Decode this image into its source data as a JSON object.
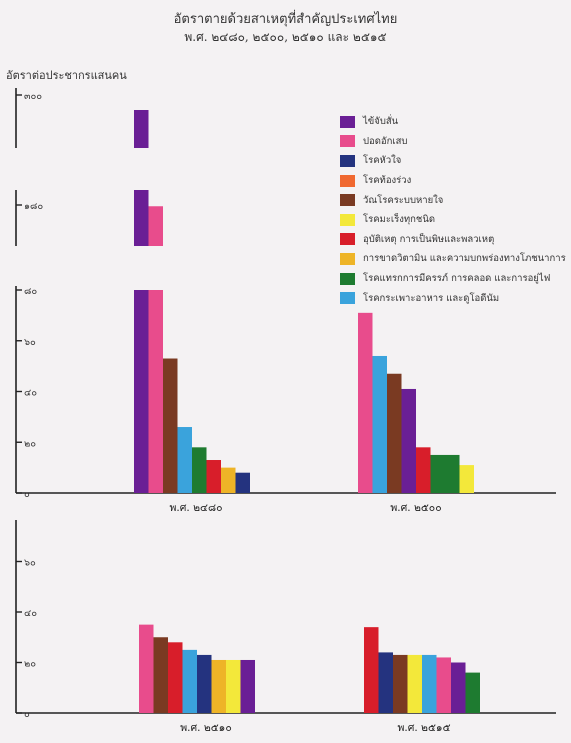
{
  "page": {
    "title": "อัตราตายด้วยสาเหตุที่สำคัญประเทศไทย",
    "subtitle": "พ.ศ. ๒๔๘๐, ๒๕๐๐, ๒๕๑๐ และ ๒๕๑๕"
  },
  "chart_data": {
    "type": "bar",
    "ylabel": "อัตราต่อประชากรแสนคน",
    "series": [
      {
        "name": "ไข้จับสั่น",
        "color": "#6a1f95"
      },
      {
        "name": "ปอดอักเสบ",
        "color": "#e84c8c"
      },
      {
        "name": "โรคหัวใจ",
        "color": "#24337f"
      },
      {
        "name": "โรคท้องร่วง",
        "color": "#f06830"
      },
      {
        "name": "วัณโรคระบบหายใจ",
        "color": "#7a3a22"
      },
      {
        "name": "โรคมะเร็งทุกชนิด",
        "color": "#f3e83a"
      },
      {
        "name": "อุบัติเหตุ การเป็นพิษและพลวเหตุ",
        "color": "#d81e2a"
      },
      {
        "name": "การขาดวิตามิน และความบกพร่องทางโภชนาการ",
        "color": "#eeb427"
      },
      {
        "name": "โรคแทรกการมีครรภ์ การคลอด และการอยู่ไฟ",
        "color": "#1e7b30"
      },
      {
        "name": "โรคกระเพาะอาหาร และดูโอดีนัม",
        "color": "#3aa3dc"
      }
    ],
    "panels": [
      {
        "tick_labels": [
          "๐",
          "๒๐",
          "๔๐",
          "๖๐",
          "๘๐",
          "๑๘๐",
          "๓๐๐"
        ],
        "groups": [
          {
            "label": "พ.ศ. ๒๔๘๐",
            "bars": [
              {
                "series": "ไข้จับสั่น",
                "value": 300
              },
              {
                "series": "ปอดอักเสบ",
                "value": 175
              },
              {
                "series": "วัณโรคระบบหายใจ",
                "value": 53
              },
              {
                "series": "โรคกระเพาะอาหาร และดูโอดีนัม",
                "value": 26
              },
              {
                "series": "โรคแทรกการมีครรภ์ การคลอด และการอยู่ไฟ",
                "value": 18
              },
              {
                "series": "อุบัติเหตุ การเป็นพิษและพลวเหตุ",
                "value": 13
              },
              {
                "series": "การขาดวิตามิน และความบกพร่องทางโภชนาการ",
                "value": 10
              },
              {
                "series": "โรคหัวใจ",
                "value": 8
              }
            ]
          },
          {
            "label": "พ.ศ. ๒๕๐๐",
            "bars": [
              {
                "series": "ปอดอักเสบ",
                "value": 71
              },
              {
                "series": "โรคกระเพาะอาหาร และดูโอดีนัม",
                "value": 54
              },
              {
                "series": "วัณโรคระบบหายใจ",
                "value": 47
              },
              {
                "series": "ไข้จับสั่น",
                "value": 41
              },
              {
                "series": "อุบัติเหตุ การเป็นพิษและพลวเหตุ",
                "value": 18
              },
              {
                "series": "โรคแทรกการมีครรภ์ การคลอด และการอยู่ไฟ",
                "value": 15
              },
              {
                "series": "โรคแทรกการมีครรภ์ การคลอด และการอยู่ไฟ",
                "value": 15
              },
              {
                "series": "โรคมะเร็งทุกชนิด",
                "value": 11
              }
            ]
          }
        ]
      },
      {
        "tick_labels": [
          "๐",
          "๒๐",
          "๔๐",
          "๖๐"
        ],
        "groups": [
          {
            "label": "พ.ศ. ๒๕๑๐",
            "bars": [
              {
                "series": "ปอดอักเสบ",
                "value": 35
              },
              {
                "series": "วัณโรคระบบหายใจ",
                "value": 30
              },
              {
                "series": "อุบัติเหตุ การเป็นพิษและพลวเหตุ",
                "value": 28
              },
              {
                "series": "โรคกระเพาะอาหาร และดูโอดีนัม",
                "value": 25
              },
              {
                "series": "โรคหัวใจ",
                "value": 23
              },
              {
                "series": "การขาดวิตามิน และความบกพร่องทางโภชนาการ",
                "value": 21
              },
              {
                "series": "โรคมะเร็งทุกชนิด",
                "value": 21
              },
              {
                "series": "ไข้จับสั่น",
                "value": 21
              }
            ]
          },
          {
            "label": "พ.ศ. ๒๕๑๕",
            "bars": [
              {
                "series": "อุบัติเหตุ การเป็นพิษและพลวเหตุ",
                "value": 34
              },
              {
                "series": "โรคหัวใจ",
                "value": 24
              },
              {
                "series": "วัณโรคระบบหายใจ",
                "value": 23
              },
              {
                "series": "โรคมะเร็งทุกชนิด",
                "value": 23
              },
              {
                "series": "โรคกระเพาะอาหาร และดูโอดีนัม",
                "value": 23
              },
              {
                "series": "ปอดอักเสบ",
                "value": 22
              },
              {
                "series": "ไข้จับสั่น",
                "value": 20
              },
              {
                "series": "โรคแทรกการมีครรภ์ การคลอด และการอยู่ไฟ",
                "value": 16
              }
            ]
          }
        ]
      }
    ]
  }
}
